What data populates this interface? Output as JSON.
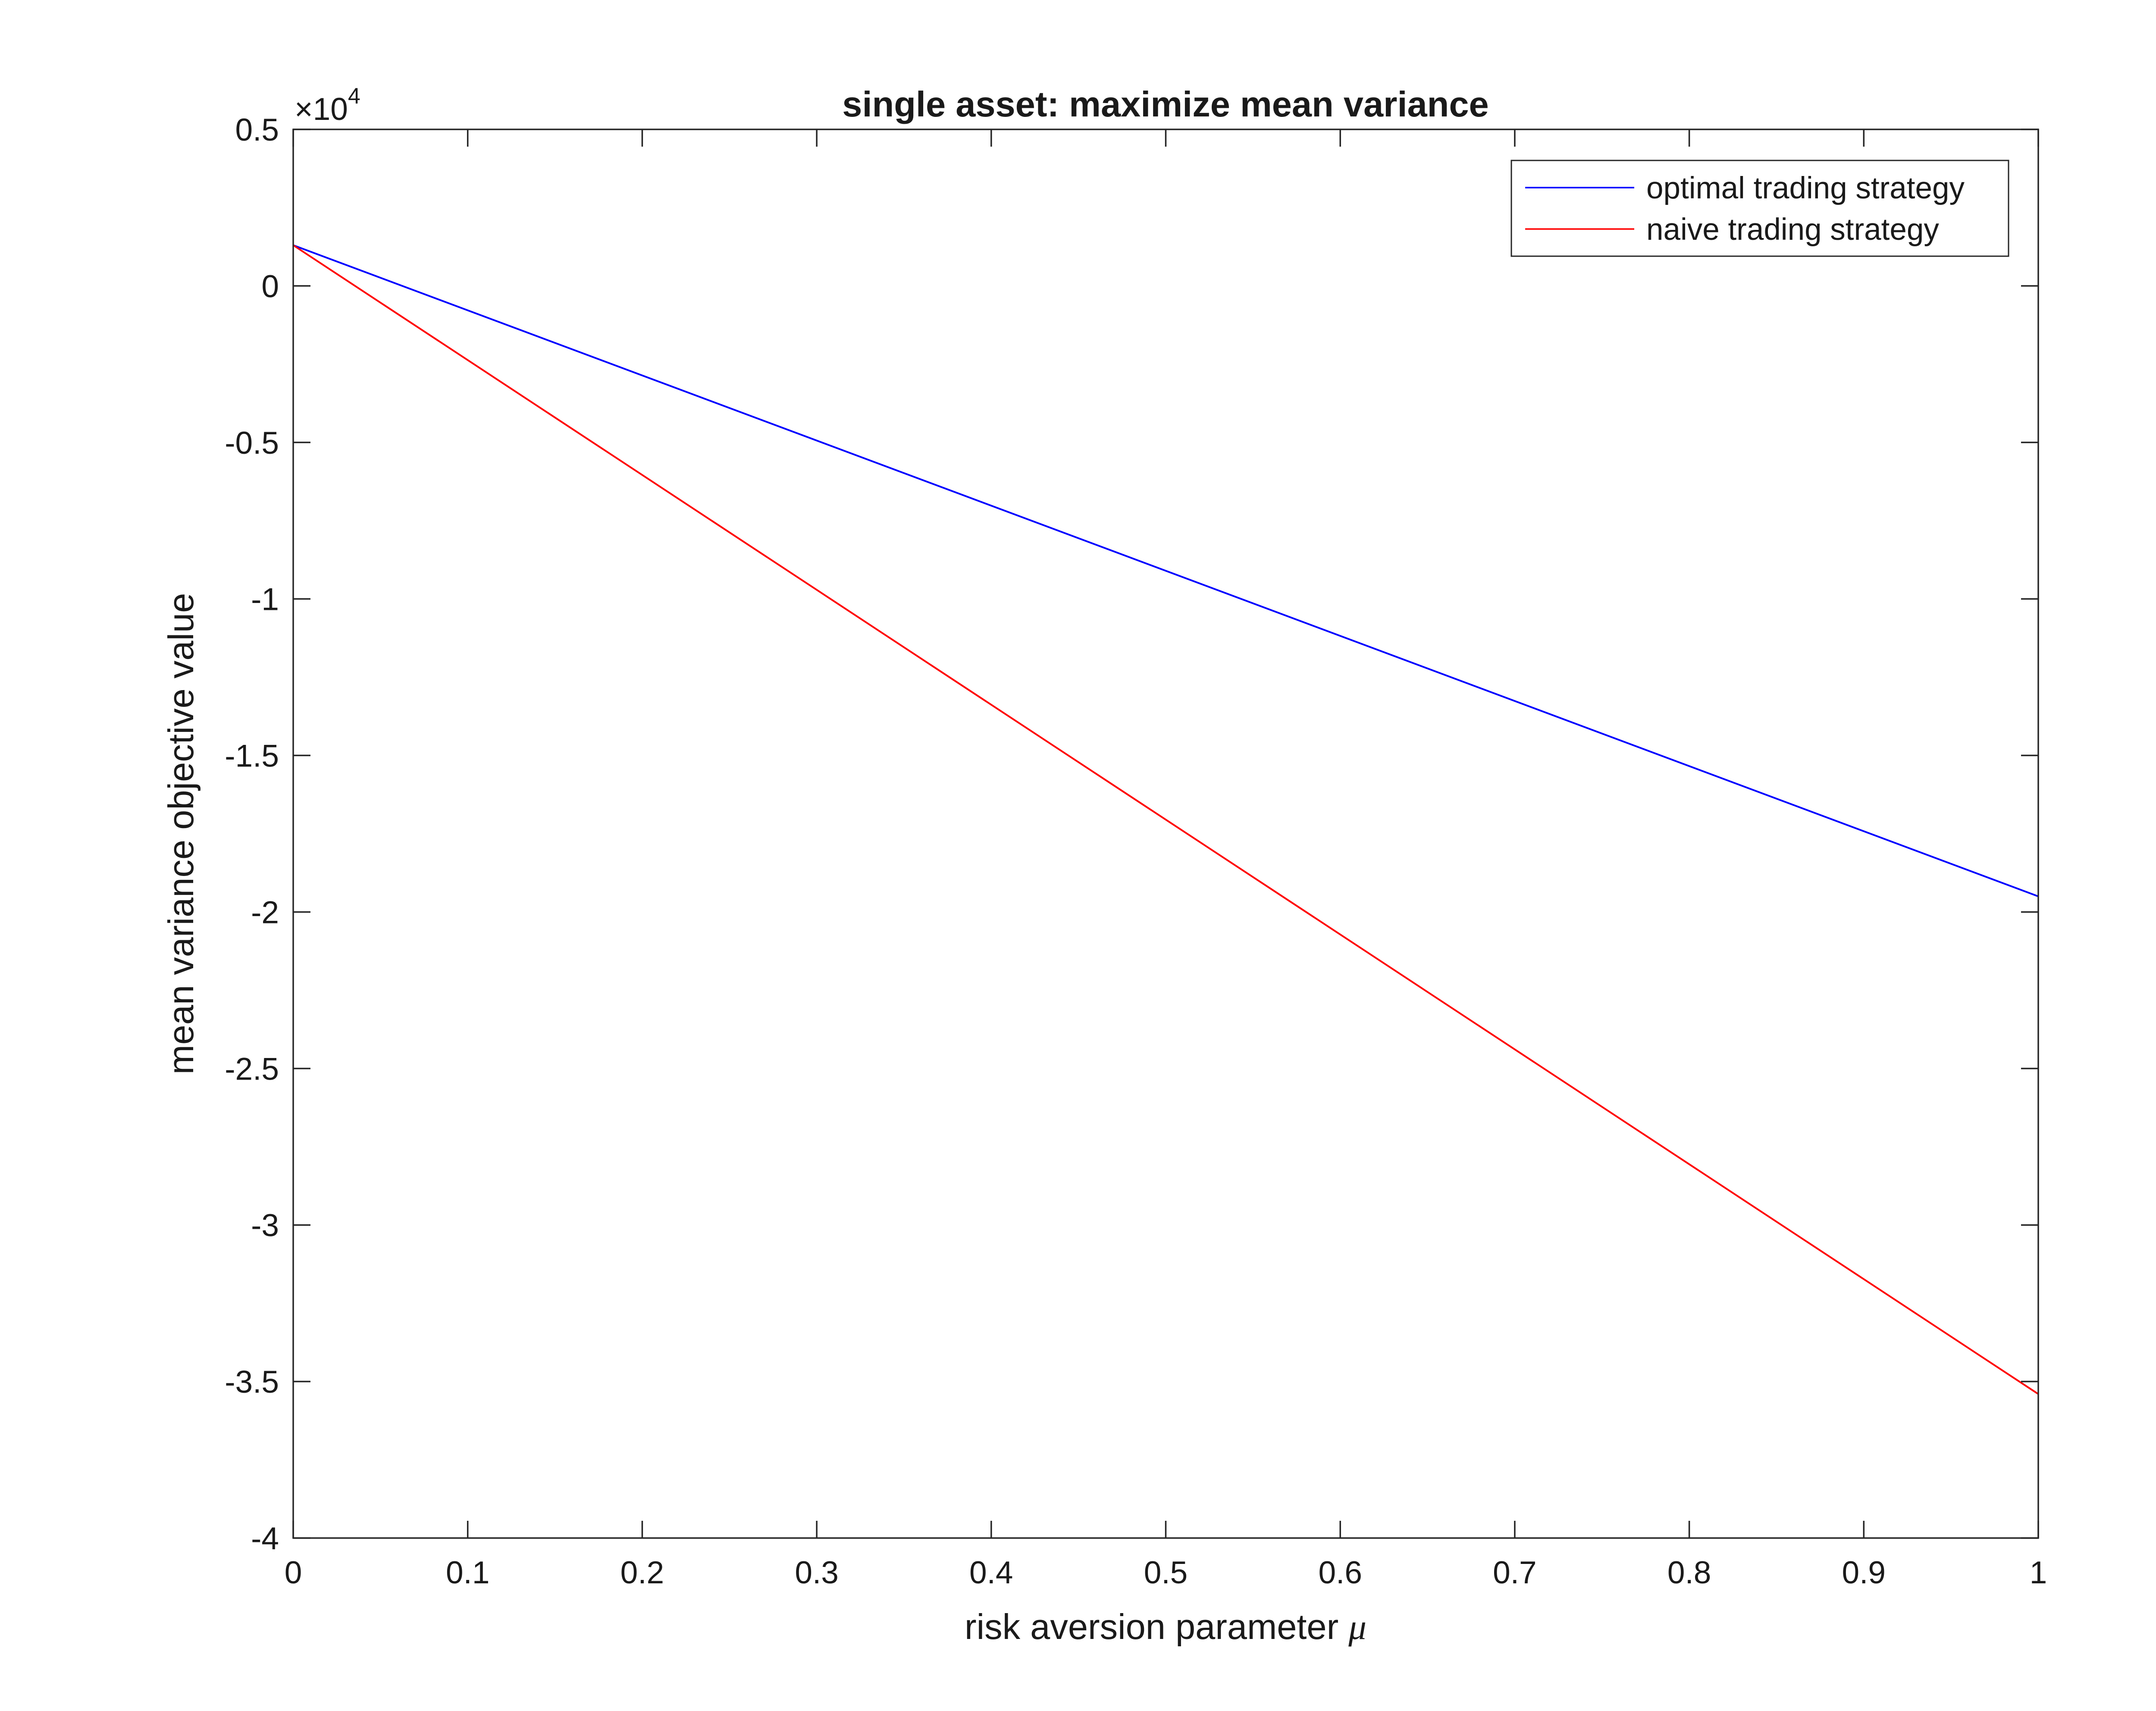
{
  "chart_data": {
    "type": "line",
    "title": "single asset: maximize mean variance",
    "xlabel_text": "risk aversion parameter ",
    "xlabel_symbol": "μ",
    "ylabel": "mean variance objective value",
    "y_exponent_label": "×10",
    "y_exponent_power": "4",
    "xlim": [
      0,
      1
    ],
    "ylim": [
      -40000,
      5000
    ],
    "x_ticks": [
      0,
      0.1,
      0.2,
      0.3,
      0.4,
      0.5,
      0.6,
      0.7,
      0.8,
      0.9,
      1
    ],
    "x_tick_labels": [
      "0",
      "0.1",
      "0.2",
      "0.3",
      "0.4",
      "0.5",
      "0.6",
      "0.7",
      "0.8",
      "0.9",
      "1"
    ],
    "y_ticks": [
      5000,
      0,
      -5000,
      -10000,
      -15000,
      -20000,
      -25000,
      -30000,
      -35000,
      -40000
    ],
    "y_tick_labels": [
      "0.5",
      "0",
      "-0.5",
      "-1",
      "-1.5",
      "-2",
      "-2.5",
      "-3",
      "-3.5",
      "-4"
    ],
    "grid": false,
    "legend_position": "top-right",
    "series": [
      {
        "name": "optimal trading strategy",
        "color": "#0000ff",
        "x": [
          0,
          1
        ],
        "y": [
          1300,
          -19500
        ]
      },
      {
        "name": "naive trading strategy",
        "color": "#ff0000",
        "x": [
          0,
          1
        ],
        "y": [
          1300,
          -35400
        ]
      }
    ]
  }
}
